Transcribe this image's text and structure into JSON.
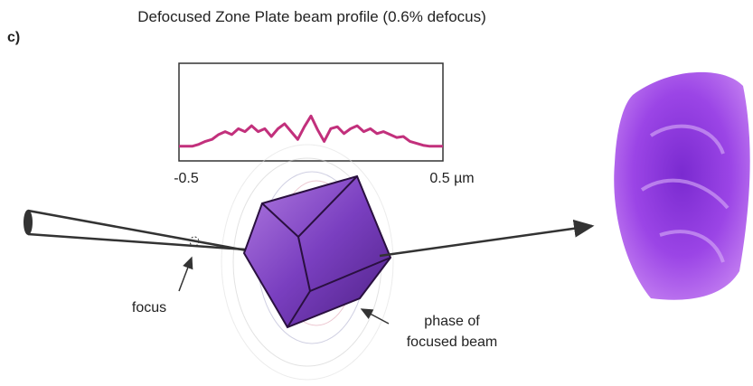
{
  "panel_label": "c)",
  "chart_data": {
    "type": "line",
    "title": "Defocused Zone Plate beam profile (0.6% defocus)",
    "x": [
      -0.5,
      -0.475,
      -0.45,
      -0.425,
      -0.4,
      -0.375,
      -0.35,
      -0.325,
      -0.3,
      -0.275,
      -0.25,
      -0.225,
      -0.2,
      -0.175,
      -0.15,
      -0.125,
      -0.1,
      -0.075,
      -0.05,
      -0.025,
      0,
      0.025,
      0.05,
      0.075,
      0.1,
      0.125,
      0.15,
      0.175,
      0.2,
      0.225,
      0.25,
      0.275,
      0.3,
      0.325,
      0.35,
      0.375,
      0.4,
      0.425,
      0.45,
      0.475,
      0.5
    ],
    "series": [
      {
        "color": "#c2307c",
        "values": [
          0.15,
          0.15,
          0.15,
          0.17,
          0.2,
          0.22,
          0.27,
          0.3,
          0.27,
          0.33,
          0.3,
          0.36,
          0.3,
          0.33,
          0.25,
          0.33,
          0.38,
          0.3,
          0.22,
          0.35,
          0.46,
          0.32,
          0.2,
          0.33,
          0.35,
          0.28,
          0.33,
          0.36,
          0.3,
          0.33,
          0.28,
          0.3,
          0.27,
          0.24,
          0.25,
          0.2,
          0.18,
          0.16,
          0.15,
          0.15,
          0.15
        ]
      }
    ],
    "xlim": [
      -0.5,
      0.5
    ],
    "xticks": [
      -0.5,
      {
        "value": 0.5,
        "label": "0.5 µm"
      }
    ],
    "ylim": [
      0,
      1
    ]
  },
  "annotations": {
    "focus": "focus",
    "phase": [
      "phase of",
      "focused beam"
    ]
  }
}
